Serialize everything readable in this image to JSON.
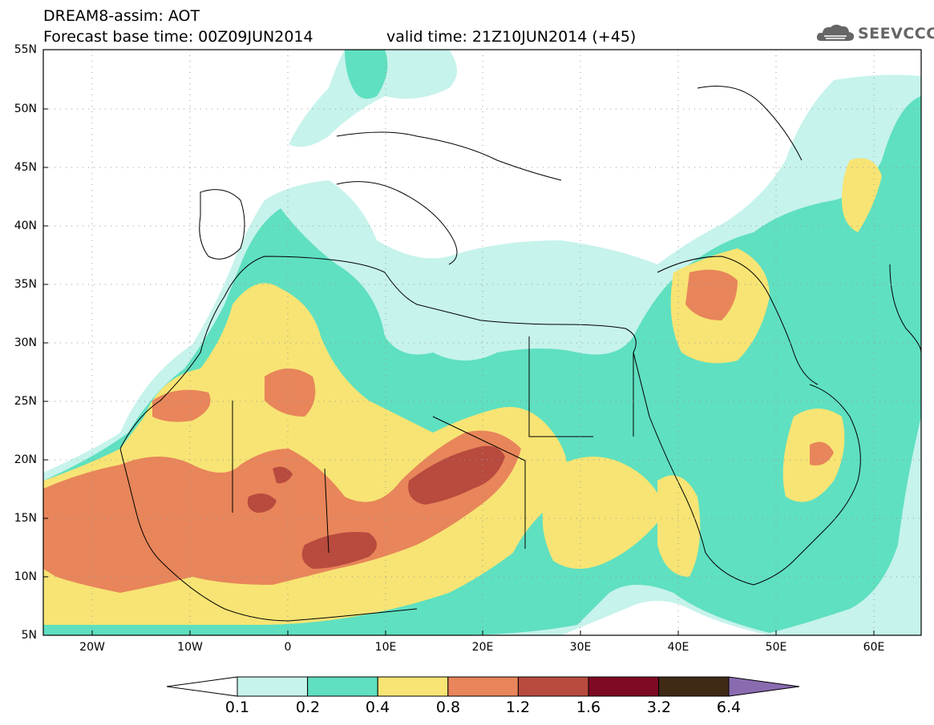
{
  "header": {
    "title": "DREAM8-assim: AOT",
    "base_time": "Forecast base time: 00Z09JUN2014",
    "valid_time": "valid time: 21Z10JUN2014 (+45)",
    "logo_text": "SEEVCCC"
  },
  "axes": {
    "lat_labels": [
      "55N",
      "50N",
      "45N",
      "40N",
      "35N",
      "30N",
      "25N",
      "20N",
      "15N",
      "10N",
      "5N"
    ],
    "lon_labels": [
      "20W",
      "10W",
      "0",
      "10E",
      "20E",
      "30E",
      "40E",
      "50E",
      "60E"
    ]
  },
  "legend": {
    "levels": [
      "0.1",
      "0.2",
      "0.4",
      "0.8",
      "1.2",
      "1.6",
      "3.2",
      "6.4"
    ],
    "colors": [
      "#c6f3ec",
      "#5fe0c0",
      "#f7e474",
      "#e8855a",
      "#b84a3e",
      "#7f0a24",
      "#3f2a16",
      "#8a6bb0"
    ]
  }
}
